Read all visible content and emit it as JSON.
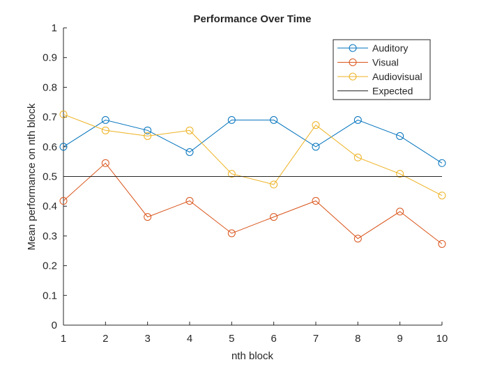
{
  "chart_data": {
    "type": "line",
    "title": "Performance Over Time",
    "xlabel": "nth block",
    "ylabel": "Mean performance on nth block",
    "xlim": [
      1,
      10
    ],
    "ylim": [
      0,
      1
    ],
    "xticks": [
      "1",
      "2",
      "3",
      "4",
      "5",
      "6",
      "7",
      "8",
      "9",
      "10"
    ],
    "yticks": [
      "0",
      "0.1",
      "0.2",
      "0.3",
      "0.4",
      "0.5",
      "0.6",
      "0.7",
      "0.8",
      "0.9",
      "1"
    ],
    "grid": false,
    "legend_position": "top-right",
    "x": [
      1,
      2,
      3,
      4,
      5,
      6,
      7,
      8,
      9,
      10
    ],
    "series": [
      {
        "name": "Auditory",
        "color": "#0072BD",
        "marker": "circle",
        "values": [
          0.6,
          0.69,
          0.655,
          0.582,
          0.69,
          0.69,
          0.6,
          0.69,
          0.636,
          0.545
        ]
      },
      {
        "name": "Visual",
        "color": "#D95319",
        "marker": "circle",
        "values": [
          0.418,
          0.545,
          0.364,
          0.418,
          0.309,
          0.364,
          0.418,
          0.291,
          0.382,
          0.273
        ]
      },
      {
        "name": "Audiovisual",
        "color": "#EDB120",
        "marker": "circle",
        "values": [
          0.709,
          0.655,
          0.636,
          0.655,
          0.509,
          0.473,
          0.673,
          0.564,
          0.509,
          0.436
        ]
      },
      {
        "name": "Expected",
        "color": "#262626",
        "marker": "none",
        "values": [
          0.5,
          0.5,
          0.5,
          0.5,
          0.5,
          0.5,
          0.5,
          0.5,
          0.5,
          0.5
        ]
      }
    ]
  }
}
